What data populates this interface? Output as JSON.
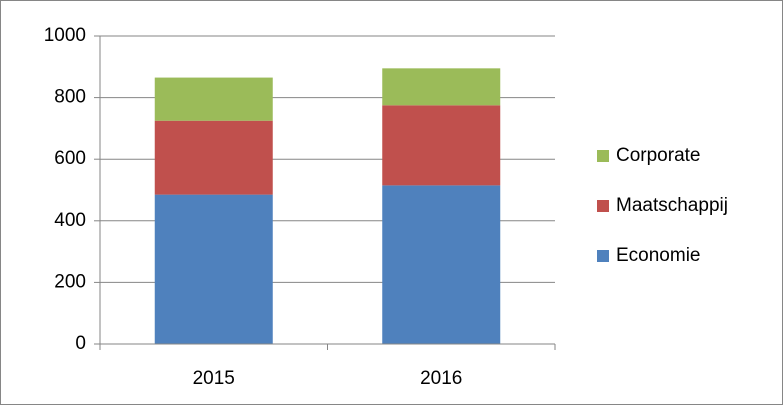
{
  "chart_data": {
    "type": "stacked_bar",
    "categories": [
      "2015",
      "2016"
    ],
    "series": [
      {
        "name": "Economie",
        "color": "#4f81bd",
        "values": [
          485,
          515
        ]
      },
      {
        "name": "Maatschappij",
        "color": "#c0504d",
        "values": [
          240,
          260
        ]
      },
      {
        "name": "Corporate",
        "color": "#9bbb59",
        "values": [
          140,
          120
        ]
      }
    ],
    "ylim": [
      0,
      1000
    ],
    "yticks": [
      0,
      200,
      400,
      600,
      800,
      1000
    ],
    "grid": true,
    "legend": "right"
  }
}
